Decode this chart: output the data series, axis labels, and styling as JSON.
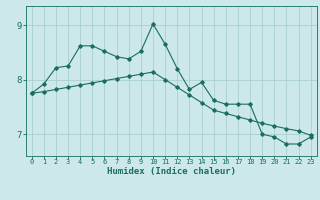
{
  "xlabel": "Humidex (Indice chaleur)",
  "bg_color": "#cce8e8",
  "grid_color": "#aacece",
  "line_color": "#1a6e5e",
  "spine_color": "#2a8070",
  "tick_color": "#1a6e5e",
  "xlim": [
    -0.5,
    23.5
  ],
  "ylim": [
    6.6,
    9.35
  ],
  "yticks": [
    7,
    8,
    9
  ],
  "xticks": [
    0,
    1,
    2,
    3,
    4,
    5,
    6,
    7,
    8,
    9,
    10,
    11,
    12,
    13,
    14,
    15,
    16,
    17,
    18,
    19,
    20,
    21,
    22,
    23
  ],
  "series1_x": [
    0,
    1,
    2,
    3,
    4,
    5,
    6,
    7,
    8,
    9,
    10,
    11,
    12,
    13,
    14,
    15,
    16,
    17,
    18,
    19,
    20,
    21,
    22,
    23
  ],
  "series1_y": [
    7.75,
    7.92,
    8.22,
    8.25,
    8.62,
    8.62,
    8.52,
    8.42,
    8.38,
    8.52,
    9.02,
    8.65,
    8.2,
    7.82,
    7.95,
    7.62,
    7.55,
    7.55,
    7.55,
    7.0,
    6.95,
    6.82,
    6.82,
    6.95
  ],
  "series2_x": [
    0,
    1,
    2,
    3,
    4,
    5,
    6,
    7,
    8,
    9,
    10,
    11,
    12,
    13,
    14,
    15,
    16,
    17,
    18,
    19,
    20,
    21,
    22,
    23
  ],
  "series2_y": [
    7.75,
    7.78,
    7.82,
    7.86,
    7.9,
    7.94,
    7.98,
    8.02,
    8.06,
    8.1,
    8.14,
    8.0,
    7.86,
    7.72,
    7.58,
    7.44,
    7.38,
    7.32,
    7.26,
    7.2,
    7.15,
    7.1,
    7.06,
    6.98
  ]
}
